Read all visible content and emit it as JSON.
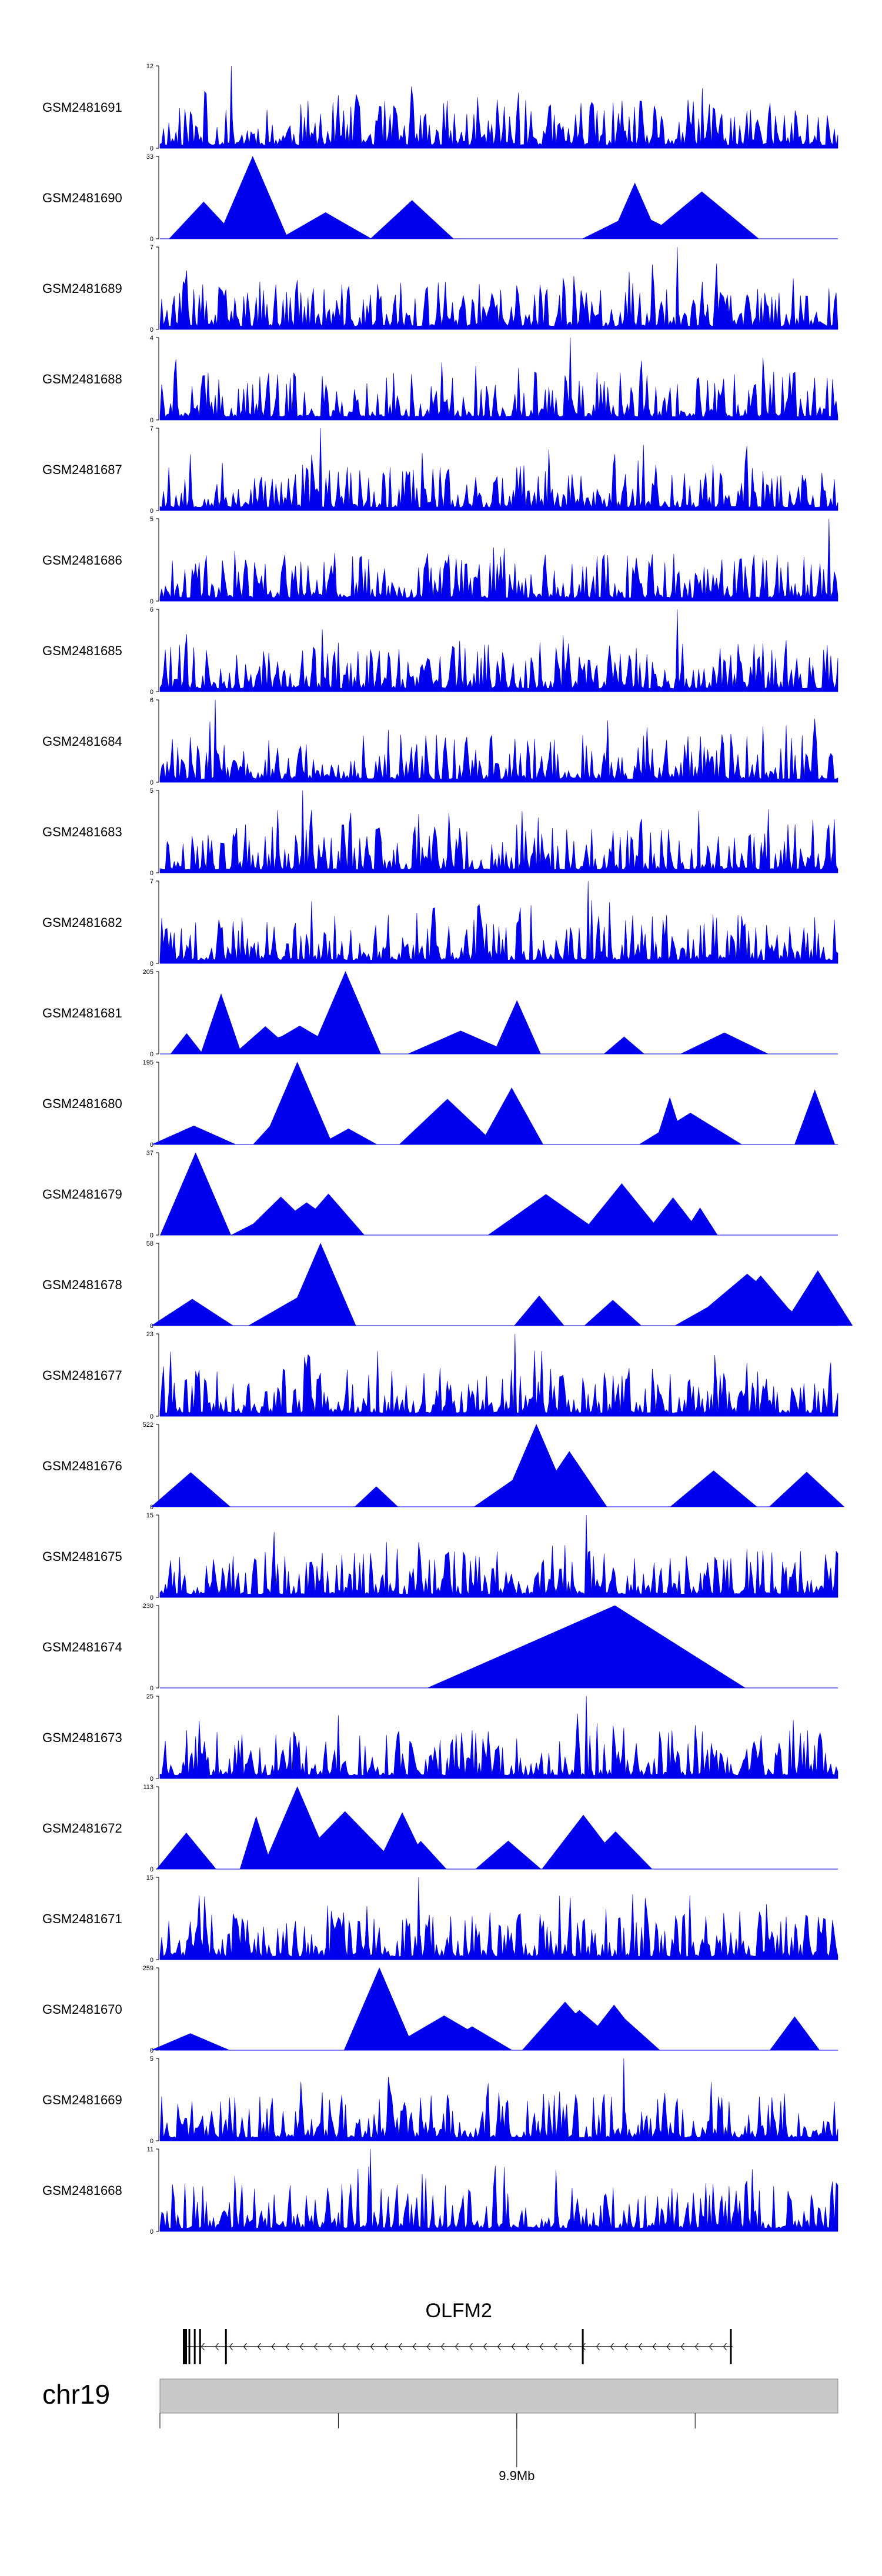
{
  "colors": {
    "signal": "#0000ee",
    "axis": "#000000",
    "ideogram": "#c8c8c8",
    "gene": "#000000"
  },
  "chart_data": {
    "type": "area",
    "title": "",
    "xlabel": "chr19",
    "region": {
      "chromosome": "chr19",
      "start_mb": 9.7,
      "end_mb": 10.08
    },
    "axis_ticks_mb": [
      9.7,
      9.8,
      9.9,
      10.0
    ],
    "axis_tick_label": "9.9Mb",
    "tracks": [
      {
        "name": "GSM2481691",
        "ymax": "12",
        "ymin": "0",
        "style": "dense",
        "seed": 11,
        "peak_mb": 9.74,
        "peak_frac": 1.0
      },
      {
        "name": "GSM2481690",
        "ymax": "33",
        "ymin": "0",
        "style": "sparse",
        "seed": 23,
        "peak_mb": 9.752,
        "peak_frac": 1.0
      },
      {
        "name": "GSM2481689",
        "ymax": "7",
        "ymin": "0",
        "style": "dense",
        "seed": 37,
        "peak_mb": 9.99,
        "peak_frac": 1.0
      },
      {
        "name": "GSM2481688",
        "ymax": "4",
        "ymin": "0",
        "style": "dense",
        "seed": 41,
        "peak_mb": 9.93,
        "peak_frac": 1.0
      },
      {
        "name": "GSM2481687",
        "ymax": "7",
        "ymin": "0",
        "style": "dense",
        "seed": 53,
        "peak_mb": 9.79,
        "peak_frac": 1.0
      },
      {
        "name": "GSM2481686",
        "ymax": "5",
        "ymin": "0",
        "style": "dense",
        "seed": 61,
        "peak_mb": 10.075,
        "peak_frac": 1.0
      },
      {
        "name": "GSM2481685",
        "ymax": "6",
        "ymin": "0",
        "style": "dense",
        "seed": 71,
        "peak_mb": 9.99,
        "peak_frac": 1.0
      },
      {
        "name": "GSM2481684",
        "ymax": "6",
        "ymin": "0",
        "style": "dense",
        "seed": 83,
        "peak_mb": 9.731,
        "peak_frac": 1.0
      },
      {
        "name": "GSM2481683",
        "ymax": "5",
        "ymin": "0",
        "style": "dense",
        "seed": 97,
        "peak_mb": 9.78,
        "peak_frac": 1.0
      },
      {
        "name": "GSM2481682",
        "ymax": "7",
        "ymin": "0",
        "style": "dense",
        "seed": 101,
        "peak_mb": 9.94,
        "peak_frac": 1.0
      },
      {
        "name": "GSM2481681",
        "ymax": "205",
        "ymin": "0",
        "style": "sparse",
        "seed": 113,
        "peak_mb": 9.804,
        "peak_frac": 1.0
      },
      {
        "name": "GSM2481680",
        "ymax": "195",
        "ymin": "0",
        "style": "sparse",
        "seed": 127,
        "peak_mb": 9.777,
        "peak_frac": 1.0
      },
      {
        "name": "GSM2481679",
        "ymax": "37",
        "ymin": "0",
        "style": "sparse",
        "seed": 131,
        "peak_mb": 9.72,
        "peak_frac": 1.0
      },
      {
        "name": "GSM2481678",
        "ymax": "58",
        "ymin": "0",
        "style": "sparse",
        "seed": 139,
        "peak_mb": 9.79,
        "peak_frac": 1.0
      },
      {
        "name": "GSM2481677",
        "ymax": "23",
        "ymin": "0",
        "style": "dense",
        "seed": 149,
        "peak_mb": 9.899,
        "peak_frac": 1.0
      },
      {
        "name": "GSM2481676",
        "ymax": "522",
        "ymin": "0",
        "style": "sparse",
        "seed": 151,
        "peak_mb": 9.911,
        "peak_frac": 1.0
      },
      {
        "name": "GSM2481675",
        "ymax": "15",
        "ymin": "0",
        "style": "dense",
        "seed": 163,
        "peak_mb": 9.939,
        "peak_frac": 1.0
      },
      {
        "name": "GSM2481674",
        "ymax": "230",
        "ymin": "0",
        "style": "single",
        "seed": 167,
        "peak_mb": 9.955,
        "peak_frac": 1.0
      },
      {
        "name": "GSM2481673",
        "ymax": "25",
        "ymin": "0",
        "style": "dense",
        "seed": 173,
        "peak_mb": 9.939,
        "peak_frac": 1.0
      },
      {
        "name": "GSM2481672",
        "ymax": "113",
        "ymin": "0",
        "style": "sparse",
        "seed": 179,
        "peak_mb": 9.777,
        "peak_frac": 1.0
      },
      {
        "name": "GSM2481671",
        "ymax": "15",
        "ymin": "0",
        "style": "dense",
        "seed": 181,
        "peak_mb": 9.845,
        "peak_frac": 1.0
      },
      {
        "name": "GSM2481670",
        "ymax": "259",
        "ymin": "0",
        "style": "sparse",
        "seed": 191,
        "peak_mb": 9.823,
        "peak_frac": 1.0
      },
      {
        "name": "GSM2481669",
        "ymax": "5",
        "ymin": "0",
        "style": "dense",
        "seed": 193,
        "peak_mb": 9.96,
        "peak_frac": 1.0
      },
      {
        "name": "GSM2481668",
        "ymax": "11",
        "ymin": "0",
        "style": "dense",
        "seed": 197,
        "peak_mb": 9.818,
        "peak_frac": 1.0
      }
    ],
    "gene": {
      "name": "OLFM2",
      "start_mb": 9.714,
      "end_mb": 10.021,
      "strand": "-",
      "exons_mb": [
        9.714,
        9.7165,
        9.7195,
        9.7225,
        9.737,
        9.937,
        10.02
      ]
    }
  }
}
